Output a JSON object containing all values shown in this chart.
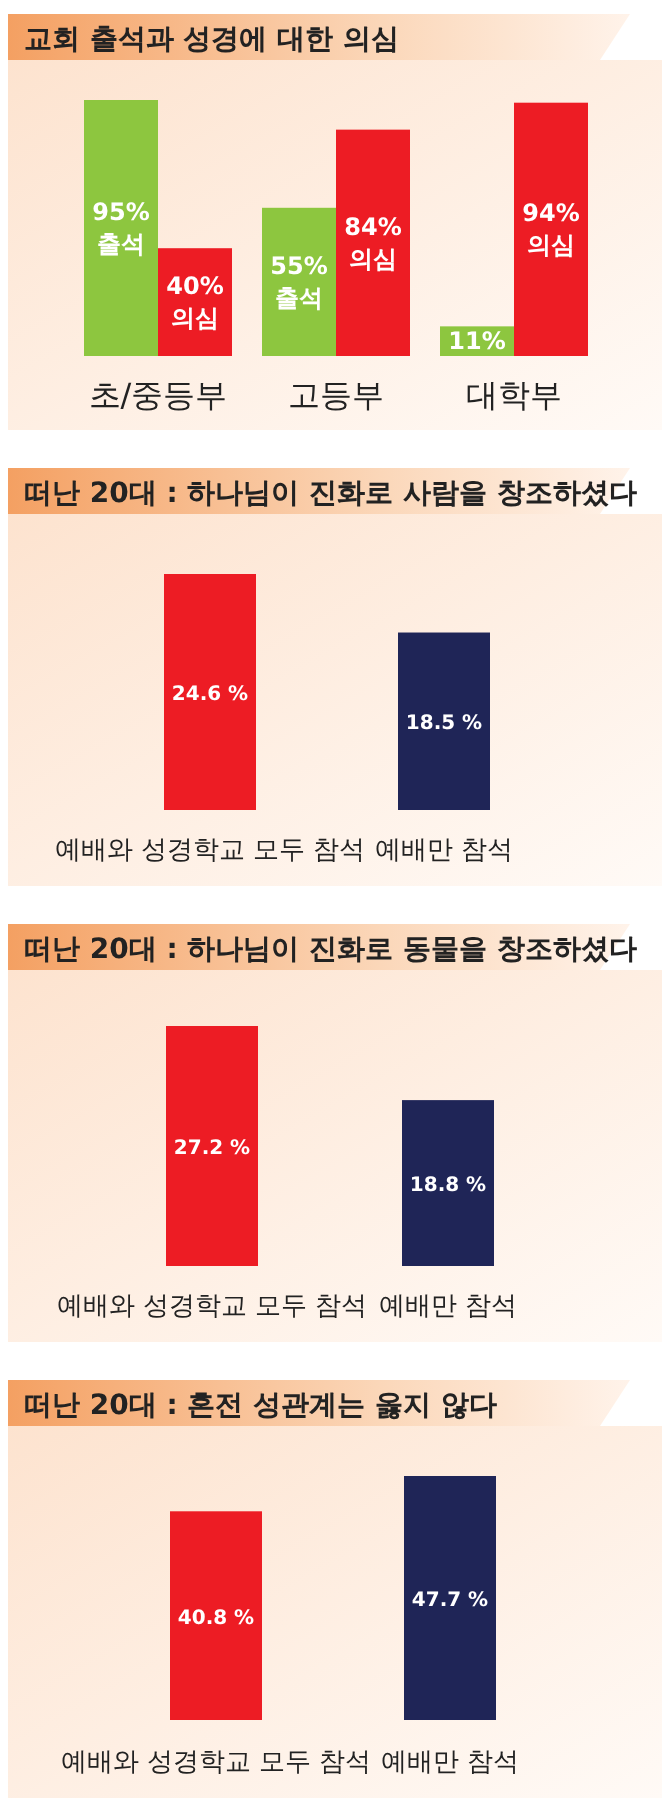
{
  "chart_data": [
    {
      "type": "bar",
      "title": "교회 출석과 성경에 대한 의심",
      "categories": [
        "초/중등부",
        "고등부",
        "대학부"
      ],
      "series": [
        {
          "name": "출석",
          "color": "#8dc63f",
          "values": [
            95,
            55,
            11
          ],
          "value_labels": [
            "95%",
            "55%",
            "11%"
          ]
        },
        {
          "name": "의심",
          "color": "#ed1c24",
          "values": [
            40,
            84,
            94
          ],
          "value_labels": [
            "40%",
            "84%",
            "94%"
          ]
        }
      ]
    },
    {
      "type": "bar",
      "title": "떠난 20대 : 하나님이 진화로 사람을 창조하셨다",
      "categories": [
        "예배와 성경학교 모두 참석",
        "예배만 참석"
      ],
      "values": [
        24.6,
        18.5
      ],
      "colors": [
        "#ed1c24",
        "#1f2557"
      ],
      "value_labels": [
        "24.6 %",
        "18.5 %"
      ]
    },
    {
      "type": "bar",
      "title": "떠난 20대 : 하나님이 진화로 동물을 창조하셨다",
      "categories": [
        "예배와 성경학교 모두 참석",
        "예배만 참석"
      ],
      "values": [
        27.2,
        18.8
      ],
      "colors": [
        "#ed1c24",
        "#1f2557"
      ],
      "value_labels": [
        "27.2 %",
        "18.8 %"
      ]
    },
    {
      "type": "bar",
      "title": "떠난 20대 : 혼전 성관계는 옳지 않다",
      "categories": [
        "예배와 성경학교 모두 참석",
        "예배만 참석"
      ],
      "values": [
        40.8,
        47.7
      ],
      "colors": [
        "#ed1c24",
        "#1f2557"
      ],
      "value_labels": [
        "40.8 %",
        "47.7 %"
      ]
    }
  ]
}
